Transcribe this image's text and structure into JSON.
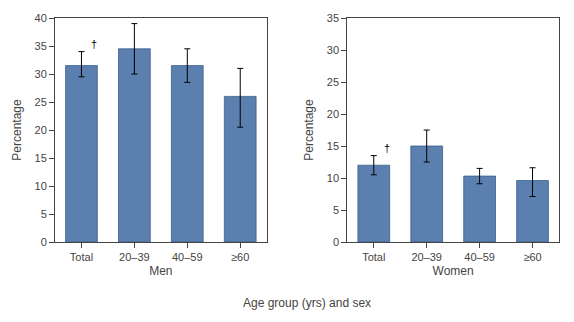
{
  "chart_data": [
    {
      "type": "bar",
      "categories": [
        "Total",
        "20–39",
        "40–59",
        "≥60"
      ],
      "values": [
        31.5,
        34.5,
        31.5,
        26.0
      ],
      "errors_upper": [
        2.5,
        4.5,
        3.0,
        5.0
      ],
      "errors_lower": [
        2.0,
        4.5,
        3.0,
        5.5
      ],
      "color": "#5b7faf",
      "xlabel": "Men",
      "ylabel": "Percentage",
      "ylim": [
        0,
        40
      ],
      "yticks": [
        0,
        5,
        10,
        15,
        20,
        25,
        30,
        35,
        40
      ],
      "grid": false,
      "annotations": [
        {
          "text": "†",
          "x": "Total"
        }
      ]
    },
    {
      "type": "bar",
      "categories": [
        "Total",
        "20–39",
        "40–59",
        "≥60"
      ],
      "values": [
        12.0,
        15.0,
        10.3,
        9.6
      ],
      "errors_upper": [
        1.5,
        2.5,
        1.2,
        2.0
      ],
      "errors_lower": [
        1.5,
        2.5,
        1.2,
        2.5
      ],
      "color": "#5b7faf",
      "xlabel": "Women",
      "ylabel": "Percentage",
      "ylim": [
        0,
        35
      ],
      "yticks": [
        0,
        5,
        10,
        15,
        20,
        25,
        30,
        35
      ],
      "grid": false,
      "annotations": [
        {
          "text": "†",
          "x": "Total"
        }
      ]
    }
  ],
  "xlabel": "Age group (yrs) and sex"
}
